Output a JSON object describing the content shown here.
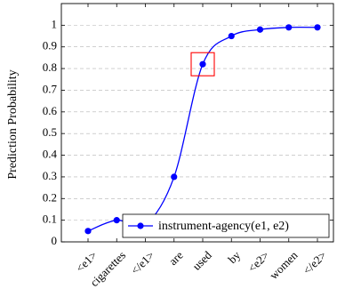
{
  "chart_data": {
    "type": "line",
    "title": "",
    "xlabel": "",
    "ylabel": "Prediction Probability",
    "categories": [
      "<e1>",
      "cigarettes",
      "</e1>",
      "are",
      "used",
      "by",
      "<e2>",
      "women",
      "</e2>"
    ],
    "series": [
      {
        "name": "instrument-agency(e1, e2)",
        "values": [
          0.05,
          0.1,
          0.08,
          0.3,
          0.82,
          0.95,
          0.98,
          0.99,
          0.99
        ],
        "color": "#0000ff"
      }
    ],
    "ylim": [
      0,
      1.1
    ],
    "yticks": [
      "0",
      "0.1",
      "0.2",
      "0.3",
      "0.4",
      "0.5",
      "0.6",
      "0.7",
      "0.8",
      "0.9",
      "1"
    ],
    "grid": "horizontal-dashed",
    "legend_position": "bottom-right",
    "highlight_category": "used",
    "highlight_color": "#ff0000",
    "smooth": true
  }
}
